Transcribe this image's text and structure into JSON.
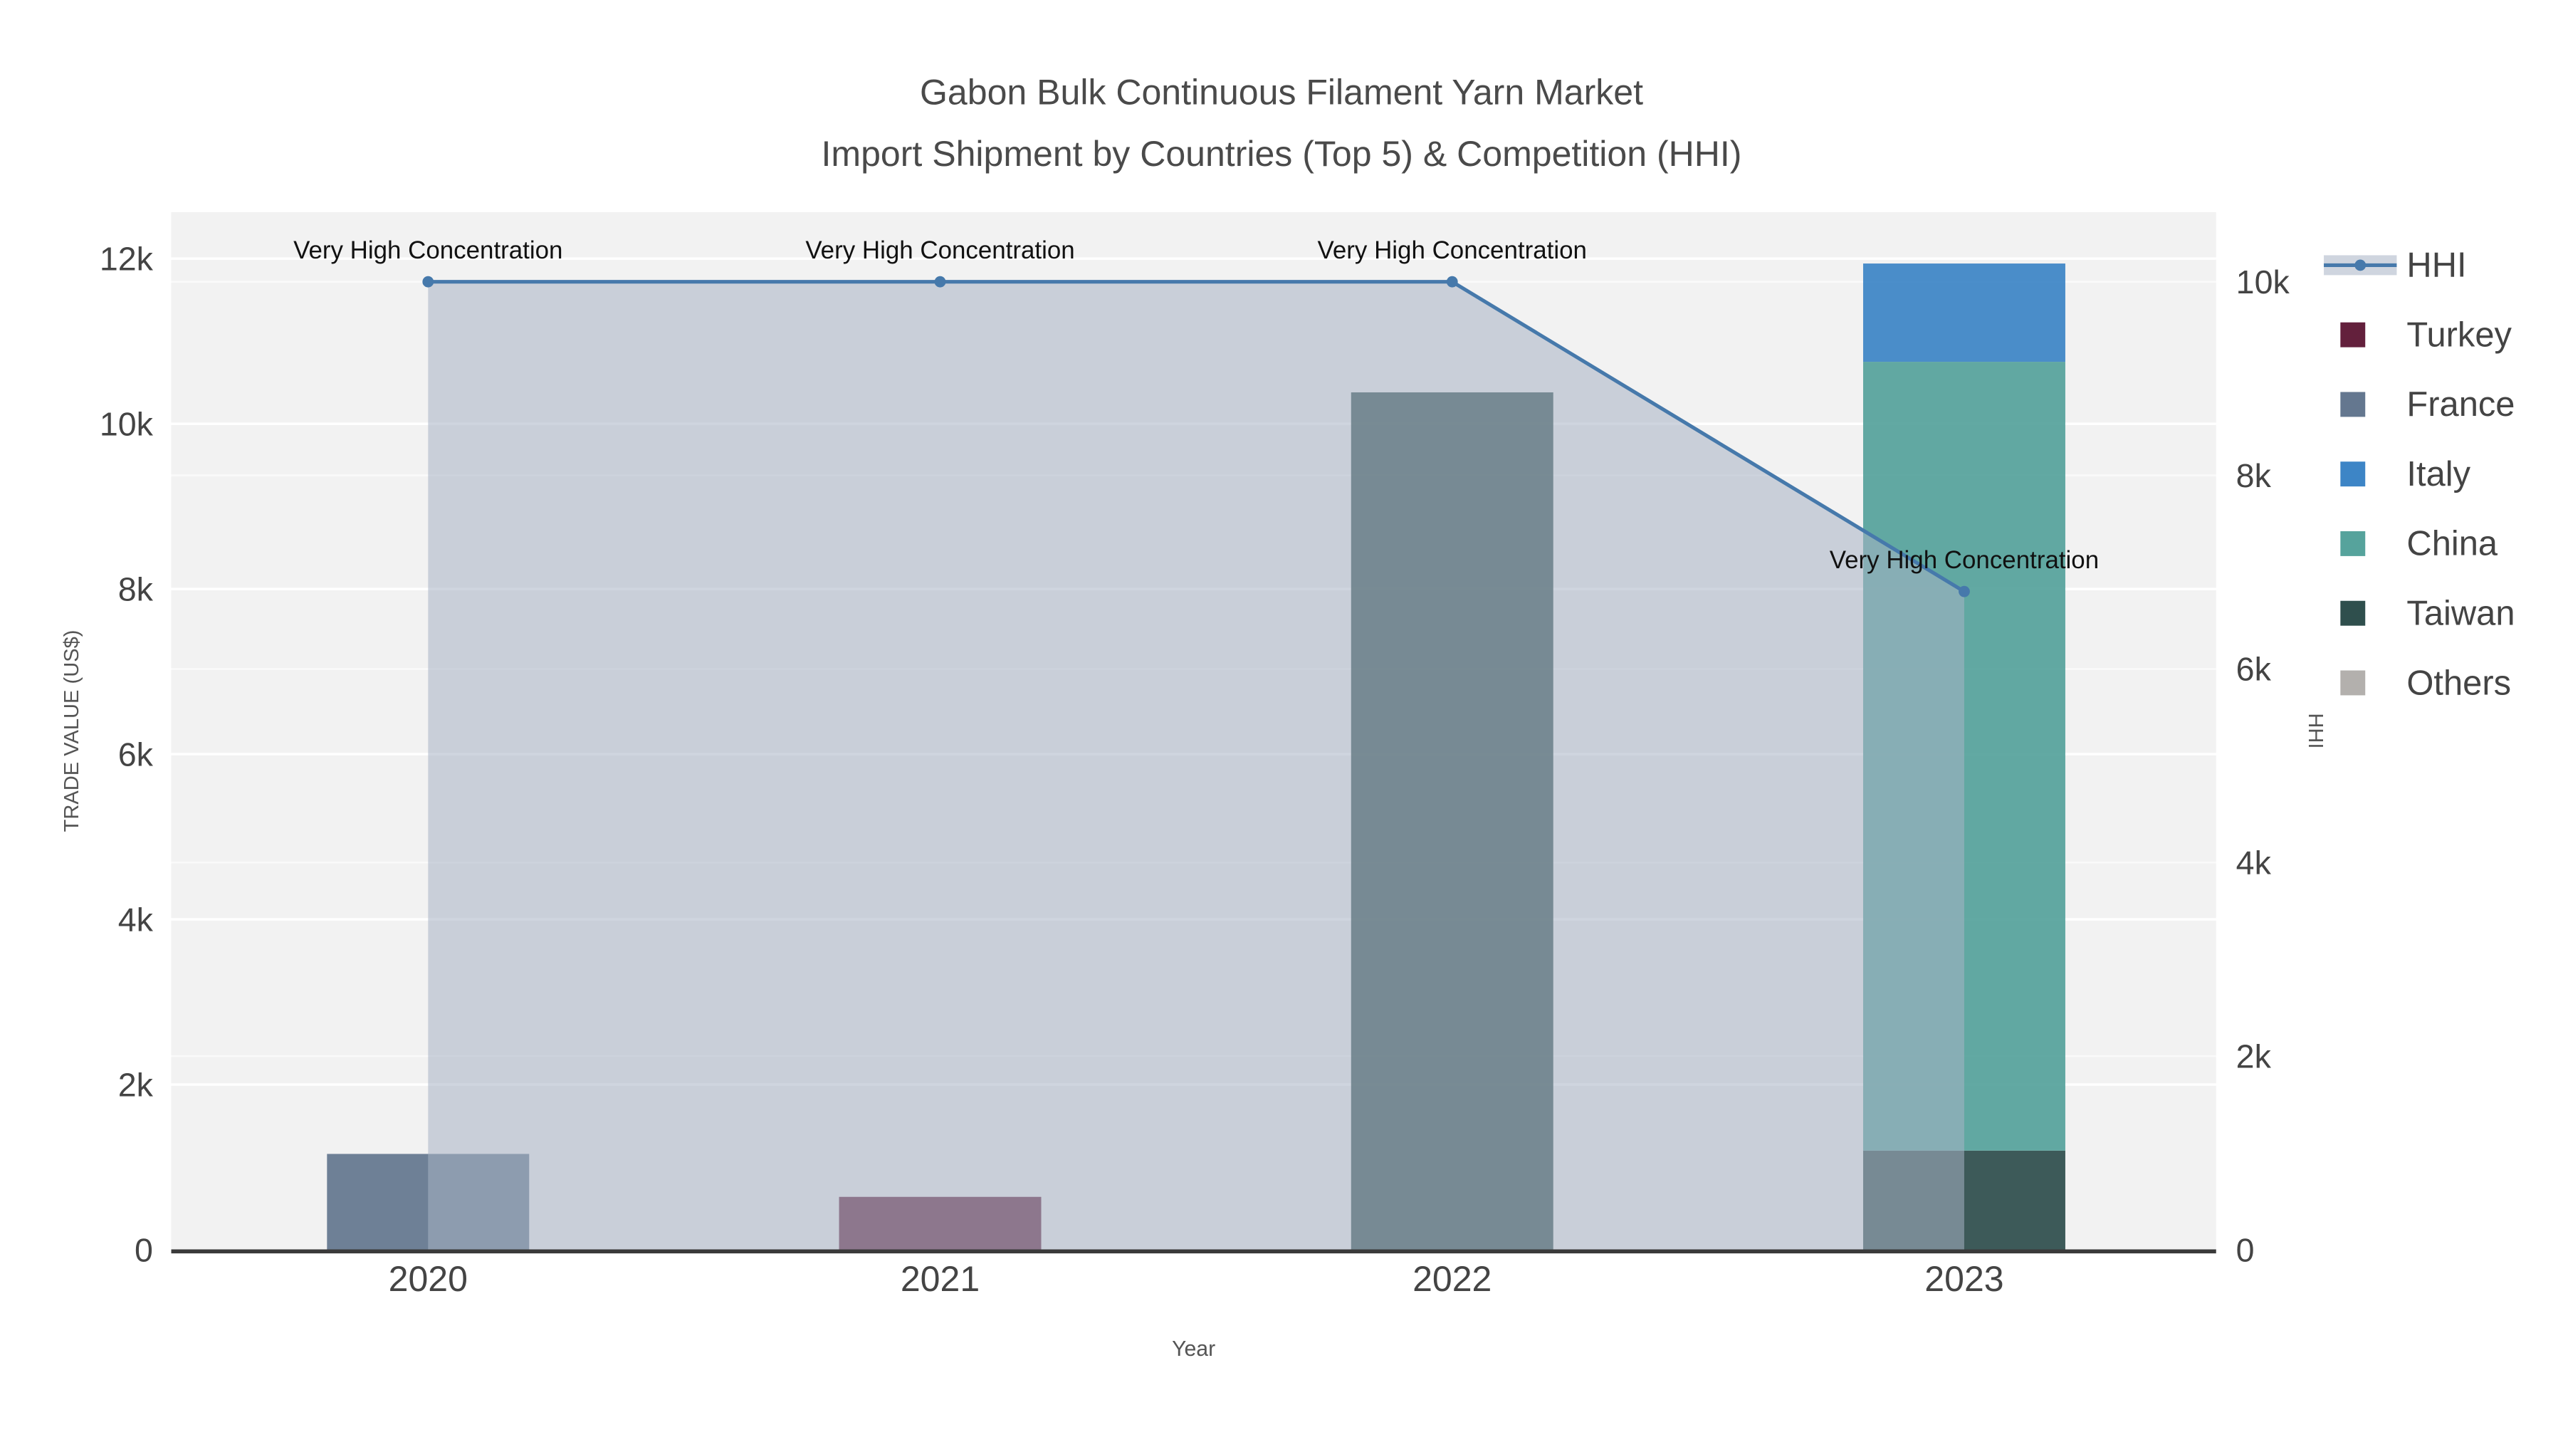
{
  "title": {
    "line1": "Gabon Bulk Continuous Filament Yarn Market",
    "line2": "Import Shipment by Countries (Top 5) & Competition (HHI)"
  },
  "axes": {
    "x_label": "Year",
    "y_left_label": "TRADE VALUE (US$)",
    "y_right_label": "HHI",
    "y_left_ticks": [
      {
        "label": "0",
        "value": 0
      },
      {
        "label": "2k",
        "value": 2000
      },
      {
        "label": "4k",
        "value": 4000
      },
      {
        "label": "6k",
        "value": 6000
      },
      {
        "label": "8k",
        "value": 8000
      },
      {
        "label": "10k",
        "value": 10000
      },
      {
        "label": "12k",
        "value": 12000
      }
    ],
    "y_right_ticks": [
      {
        "label": "0",
        "value": 0
      },
      {
        "label": "2k",
        "value": 2000
      },
      {
        "label": "4k",
        "value": 4000
      },
      {
        "label": "6k",
        "value": 6000
      },
      {
        "label": "8k",
        "value": 8000
      },
      {
        "label": "10k",
        "value": 10000
      }
    ]
  },
  "chart_data": {
    "type": "bar",
    "subtype": "stacked-bars-with-line-dual-axis",
    "categories": [
      "2020",
      "2021",
      "2022",
      "2023"
    ],
    "y_left_range": [
      0,
      12550
    ],
    "y_right_range": [
      0,
      10270
    ],
    "series": [
      {
        "name": "Turkey",
        "type": "bar",
        "values": [
          0,
          640,
          0,
          0
        ]
      },
      {
        "name": "France",
        "type": "bar",
        "values": [
          1160,
          0,
          0,
          0
        ]
      },
      {
        "name": "Italy",
        "type": "bar",
        "values": [
          0,
          0,
          0,
          1190
        ]
      },
      {
        "name": "China",
        "type": "bar",
        "values": [
          0,
          0,
          0,
          9550
        ]
      },
      {
        "name": "Taiwan",
        "type": "bar",
        "values": [
          0,
          0,
          10380,
          1200
        ]
      },
      {
        "name": "Others",
        "type": "bar",
        "values": [
          0,
          0,
          0,
          0
        ]
      }
    ],
    "stack_order_bottom_to_top": [
      "Taiwan",
      "China",
      "Italy",
      "France",
      "Turkey",
      "Others"
    ],
    "line": {
      "name": "HHI",
      "axis": "right",
      "values": [
        10000,
        10000,
        10000,
        6800
      ]
    },
    "annotations": [
      {
        "text": "Very High Concentration",
        "category_index": 0,
        "axis": "right",
        "value": 10000
      },
      {
        "text": "Very High Concentration",
        "category_index": 1,
        "axis": "right",
        "value": 10000
      },
      {
        "text": "Very High Concentration",
        "category_index": 2,
        "axis": "right",
        "value": 10000
      },
      {
        "text": "Very High Concentration",
        "category_index": 3,
        "axis": "right",
        "value": 6800
      }
    ]
  },
  "legend": {
    "items": [
      {
        "label": "HHI",
        "swatch": "line"
      },
      {
        "label": "Turkey",
        "swatch": "square"
      },
      {
        "label": "France",
        "swatch": "square"
      },
      {
        "label": "Italy",
        "swatch": "square"
      },
      {
        "label": "China",
        "swatch": "square"
      },
      {
        "label": "Taiwan",
        "swatch": "square"
      },
      {
        "label": "Others",
        "swatch": "square"
      }
    ]
  },
  "colors": {
    "HHI": "#4679ab",
    "Turkey": "#63203c",
    "France": "#64778f",
    "Italy": "#3d85c6",
    "China": "#56a39c",
    "Taiwan": "#2f4f4d",
    "Others": "#b3b0ad",
    "area_fill": "rgba(167,179,196,0.55)",
    "plot_bg": "#f2f2f2",
    "grid": "#ffffff",
    "axis_line": "#3a3a3a",
    "tick_text": "#444444",
    "annotation_text": "#111111"
  }
}
